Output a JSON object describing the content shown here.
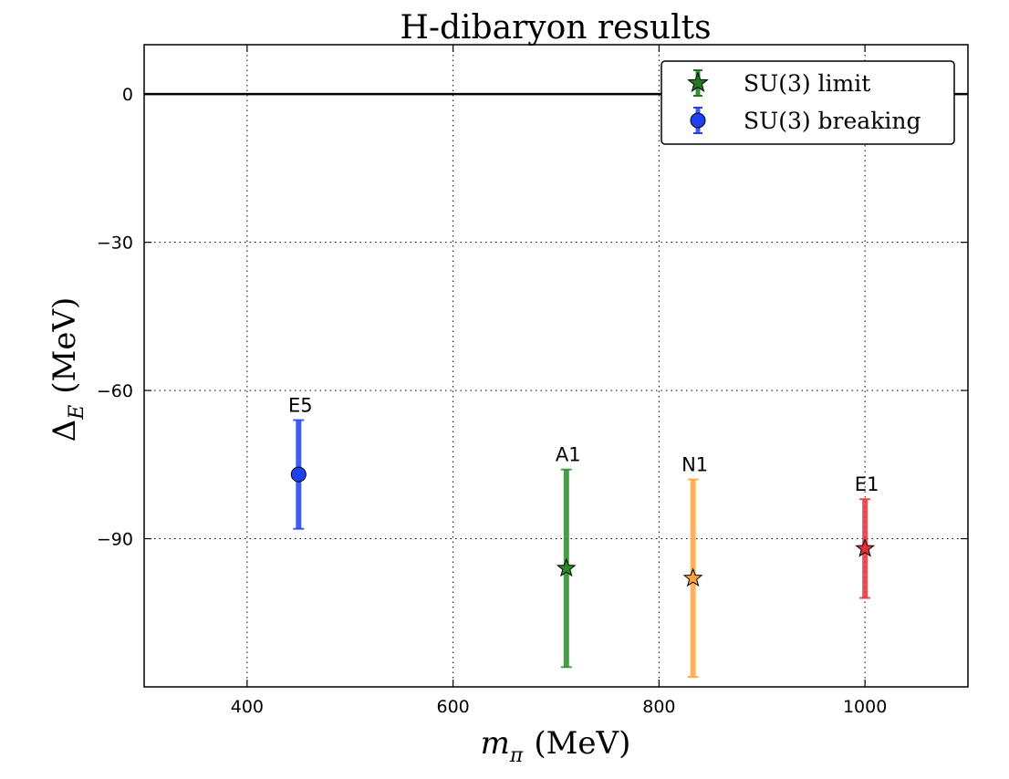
{
  "chart_data": {
    "type": "scatter",
    "title": "H-dibaryon results",
    "xlabel": {
      "symbol": "m",
      "subscript": "π",
      "unit": "(MeV)"
    },
    "ylabel": {
      "symbol": "Δ",
      "subscript": "E",
      "unit": "(MeV)"
    },
    "xlim": [
      300,
      1100
    ],
    "ylim": [
      -120,
      10
    ],
    "xticks": [
      400,
      600,
      800,
      1000
    ],
    "yticks": [
      0,
      -30,
      -60,
      -90
    ],
    "xtick_labels": [
      "400",
      "600",
      "800",
      "1000"
    ],
    "ytick_labels": [
      "0",
      "−30",
      "−60",
      "−90"
    ],
    "grid": true,
    "reference_line_y": 0,
    "legend_position": "top-right",
    "legend": [
      {
        "label": "SU(3) limit",
        "marker": "star",
        "color": "#1e7a1e"
      },
      {
        "label": "SU(3) breaking",
        "marker": "circle",
        "color": "#1f3ff5"
      }
    ],
    "points": [
      {
        "label": "E5",
        "x": 450,
        "y": -77,
        "err_low": 11,
        "err_high": 11,
        "marker": "circle",
        "color": "#1f3ff5"
      },
      {
        "label": "A1",
        "x": 710,
        "y": -96,
        "err_low": 20,
        "err_high": 20,
        "marker": "star",
        "color": "#2a8a2a"
      },
      {
        "label": "N1",
        "x": 833,
        "y": -98,
        "err_low": 20,
        "err_high": 20,
        "marker": "star",
        "color": "#ffa43a"
      },
      {
        "label": "E1",
        "x": 1000,
        "y": -92,
        "err_low": 10,
        "err_high": 10,
        "marker": "star",
        "color": "#e8303a"
      }
    ]
  }
}
